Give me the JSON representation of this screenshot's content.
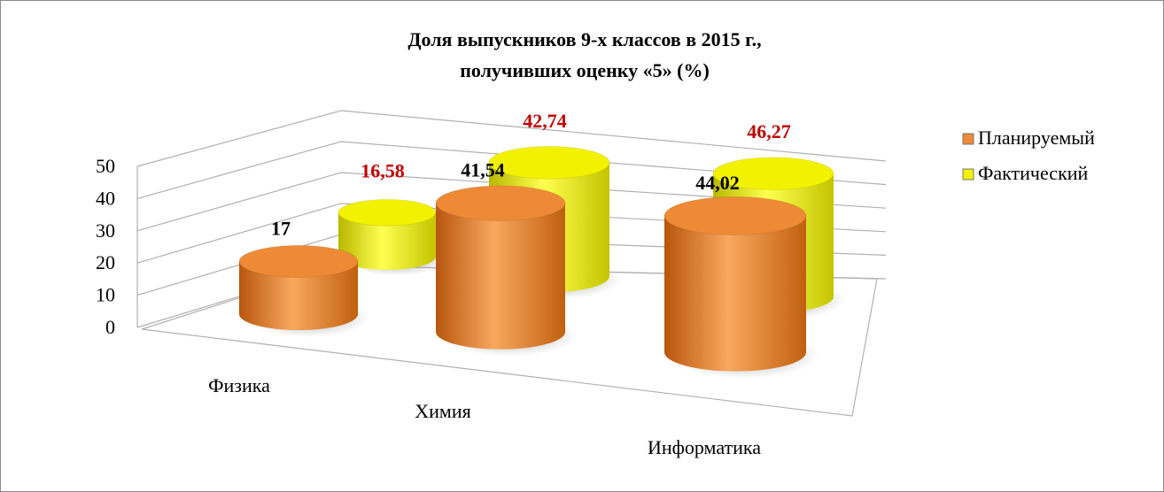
{
  "chart_data": {
    "type": "bar3d",
    "title": [
      "Доля выпускников 9-х классов в 2015 г.,",
      "получивших оценку «5» (%)"
    ],
    "categories": [
      "Физика",
      "Химия",
      "Информатика"
    ],
    "series": [
      {
        "name": "Планируемый",
        "color": "#ee8a36",
        "values": [
          17,
          41.54,
          44.02
        ],
        "value_labels": [
          "17",
          "41,54",
          "44,02"
        ],
        "label_color": "#000000"
      },
      {
        "name": "Фактический",
        "color": "#f2f200",
        "values": [
          16.58,
          42.74,
          46.27
        ],
        "value_labels": [
          "16,58",
          "42,74",
          "46,27"
        ],
        "label_color": "#c00000"
      }
    ],
    "ylim": [
      0,
      50
    ],
    "yticks": [
      0,
      10,
      20,
      30,
      40,
      50
    ],
    "grid": true,
    "legend": "right"
  }
}
